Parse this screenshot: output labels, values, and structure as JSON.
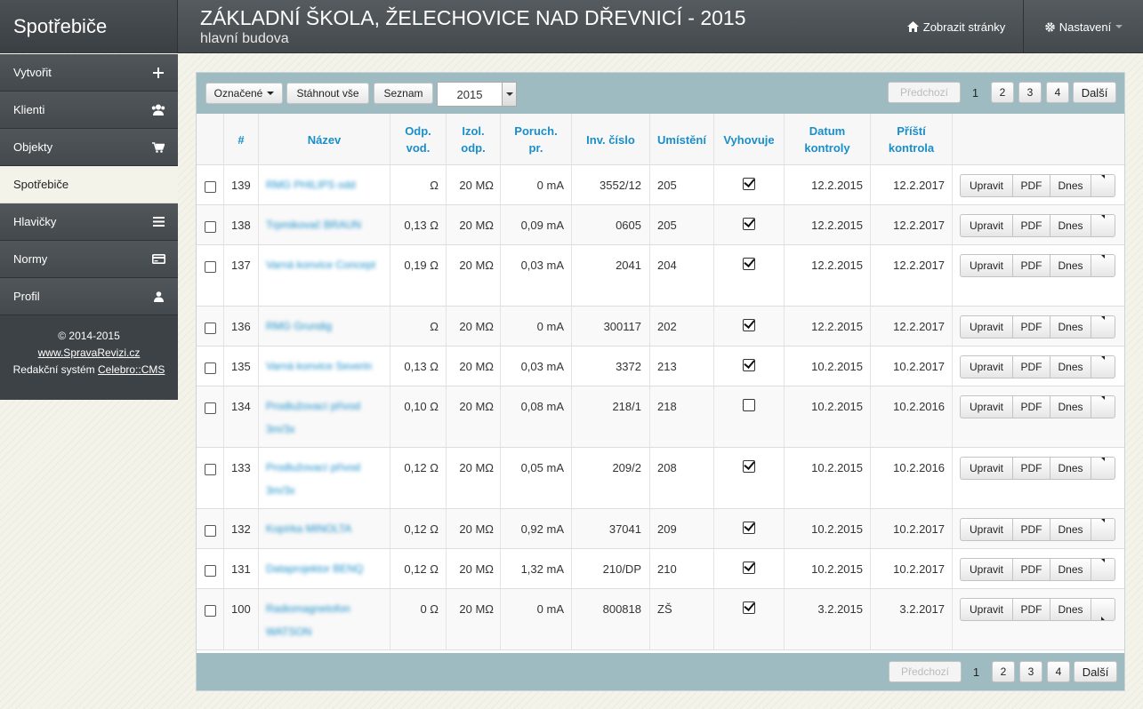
{
  "app": {
    "brand": "Spotřebiče"
  },
  "header": {
    "title": "ZÁKLADNÍ ŠKOLA, ŽELECHOVICE NAD DŘEVNICÍ - 2015",
    "subtitle": "hlavní budova",
    "view_site": "Zobrazit stránky",
    "settings": "Nastavení"
  },
  "sidebar": {
    "items": [
      {
        "label": "Vytvořit",
        "icon": "plus-icon"
      },
      {
        "label": "Klienti",
        "icon": "users-icon"
      },
      {
        "label": "Objekty",
        "icon": "cart-icon"
      },
      {
        "label": "Spotřebiče",
        "icon": ""
      },
      {
        "label": "Hlavičky",
        "icon": "list-icon"
      },
      {
        "label": "Normy",
        "icon": "card-icon"
      },
      {
        "label": "Profil",
        "icon": "user-icon"
      }
    ],
    "active_index": 3,
    "footer": {
      "copyright": "© 2014-2015",
      "site_link": "www.SpravaRevizi.cz",
      "cms_prefix": "Redakční systém",
      "cms_link": "Celebro::CMS"
    }
  },
  "toolbar": {
    "marked": "Označené",
    "download_all": "Stáhnout vše",
    "list": "Seznam",
    "year": "2015"
  },
  "pagination": {
    "prev": "Předchozí",
    "pages": [
      "1",
      "2",
      "3",
      "4"
    ],
    "next": "Další"
  },
  "table": {
    "headers": {
      "num": "#",
      "name": "Název",
      "odp1": "Odp.",
      "odp2": "vod.",
      "izol1": "Izol.",
      "izol2": "odp.",
      "por1": "Poruch.",
      "por2": "pr.",
      "inv": "Inv. číslo",
      "umist": "Umístění",
      "vyhov": "Vyhovuje",
      "dat1": "Datum",
      "dat2": "kontroly",
      "pri1": "Příští",
      "pri2": "kontrola"
    },
    "actions": {
      "edit": "Upravit",
      "pdf": "PDF",
      "today": "Dnes"
    },
    "rows": [
      {
        "num": "139",
        "name": "RMG PHILIPS odd",
        "odp": "Ω",
        "izol": "20 MΩ",
        "por": "0 mA",
        "inv": "3552/12",
        "loc": "205",
        "ok": true,
        "date": "12.2.2015",
        "next": "12.2.2017"
      },
      {
        "num": "138",
        "name": "Trpmikovač BRAUN",
        "odp": "0,13 Ω",
        "izol": "20 MΩ",
        "por": "0,09 mA",
        "inv": "0605",
        "loc": "205",
        "ok": true,
        "date": "12.2.2015",
        "next": "12.2.2017"
      },
      {
        "num": "137",
        "name": "Varná konvice Concept",
        "odp": "0,19 Ω",
        "izol": "20 MΩ",
        "por": "0,03 mA",
        "inv": "2041",
        "loc": "204",
        "ok": true,
        "date": "12.2.2015",
        "next": "12.2.2017"
      },
      {
        "num": "136",
        "name": "RMG Grundig",
        "odp": "Ω",
        "izol": "20 MΩ",
        "por": "0 mA",
        "inv": "300117",
        "loc": "202",
        "ok": true,
        "date": "12.2.2015",
        "next": "12.2.2017"
      },
      {
        "num": "135",
        "name": "Varná konvice Severin",
        "odp": "0,13 Ω",
        "izol": "20 MΩ",
        "por": "0,03 mA",
        "inv": "3372",
        "loc": "213",
        "ok": true,
        "date": "10.2.2015",
        "next": "10.2.2017"
      },
      {
        "num": "134",
        "name": "Prodlužovací přívod 3m/3x",
        "odp": "0,10 Ω",
        "izol": "20 MΩ",
        "por": "0,08 mA",
        "inv": "218/1",
        "loc": "218",
        "ok": false,
        "date": "10.2.2015",
        "next": "10.2.2016"
      },
      {
        "num": "133",
        "name": "Prodlužovací přívod 3m/3x",
        "odp": "0,12 Ω",
        "izol": "20 MΩ",
        "por": "0,05 mA",
        "inv": "209/2",
        "loc": "208",
        "ok": true,
        "date": "10.2.2015",
        "next": "10.2.2016"
      },
      {
        "num": "132",
        "name": "Kopírka MINOLTA",
        "odp": "0,12 Ω",
        "izol": "20 MΩ",
        "por": "0,92 mA",
        "inv": "37041",
        "loc": "209",
        "ok": true,
        "date": "10.2.2015",
        "next": "10.2.2017"
      },
      {
        "num": "131",
        "name": "Dataprojektor BENQ",
        "odp": "0,12 Ω",
        "izol": "20 MΩ",
        "por": "1,32 mA",
        "inv": "210/DP",
        "loc": "210",
        "ok": true,
        "date": "10.2.2015",
        "next": "10.2.2017"
      },
      {
        "num": "100",
        "name": "Radiomagnetofon WATSON",
        "odp": "0 Ω",
        "izol": "20 MΩ",
        "por": "0 mA",
        "inv": "800818",
        "loc": "ZŠ",
        "ok": true,
        "date": "3.2.2015",
        "next": "3.2.2017"
      }
    ]
  }
}
